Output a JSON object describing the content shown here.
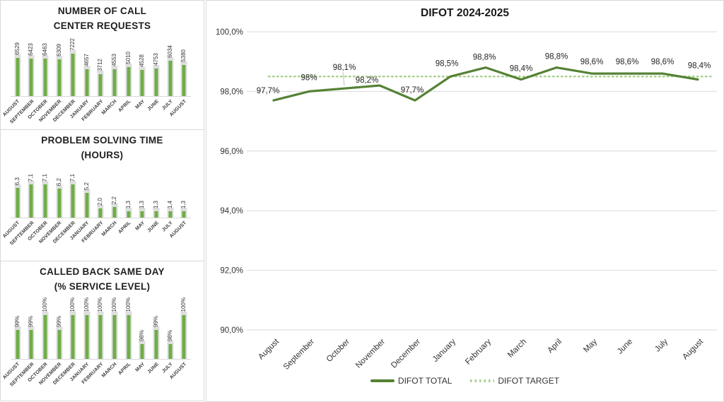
{
  "colors": {
    "bar_green": "#70AD47",
    "bar_shadow_gray": "#DEDEDE",
    "line_green": "#548235",
    "target_green": "#A9D18E",
    "gridline_gray": "#D9D9D9",
    "text_dark": "#262626",
    "text_muted": "#404040"
  },
  "chart_data": [
    {
      "id": "call-center-requests",
      "type": "bar",
      "title": "NUMBER OF CALL CENTER REQUESTS",
      "title_lines": [
        "NUMBER OF CALL",
        "CENTER REQUESTS"
      ],
      "categories": [
        "AUGUST",
        "SEPTEMBER",
        "OCTOBER",
        "NOVEMBER",
        "DECEMBER",
        "JANUARY",
        "FEBRUARY",
        "MARCH",
        "APRIL",
        "MAY",
        "JUNE",
        "JULY",
        "AUGUST"
      ],
      "values": [
        6529,
        6423,
        6463,
        6309,
        7222,
        4657,
        3712,
        4553,
        5010,
        4528,
        4753,
        6034,
        5380
      ],
      "labels": [
        "6529",
        "6423",
        "6463",
        "6309",
        "7222",
        "4657",
        "3712",
        "4553",
        "5010",
        "4528",
        "4753",
        "6034",
        "5380"
      ],
      "ylim": [
        0,
        7500
      ],
      "grid": false,
      "legend_position": "none"
    },
    {
      "id": "problem-solving-time",
      "type": "bar",
      "title": "PROBLEM SOLVING TIME (HOURS)",
      "title_lines": [
        "PROBLEM SOLVING TIME",
        "(HOURS)"
      ],
      "categories": [
        "AUGUST",
        "SEPTEMBER",
        "OCTOBER",
        "NOVEMBER",
        "DECEMBER",
        "JANUARY",
        "FEBRUARY",
        "MARCH",
        "APRIL",
        "MAY",
        "JUNE",
        "JULY",
        "AUGUST"
      ],
      "values": [
        6.3,
        7.1,
        7.1,
        6.2,
        7.1,
        5.2,
        2.0,
        2.2,
        1.3,
        1.3,
        1.3,
        1.4,
        1.3
      ],
      "labels": [
        "6,3",
        "7,1",
        "7,1",
        "6,2",
        "7,1",
        "5,2",
        "2,0",
        "2,2",
        "1,3",
        "1,3",
        "1,3",
        "1,4",
        "1,3"
      ],
      "ylim": [
        0,
        7.5
      ],
      "grid": false,
      "legend_position": "none"
    },
    {
      "id": "called-back-same-day",
      "type": "bar",
      "title": "CALLED BACK SAME DAY (% SERVICE LEVEL)",
      "title_lines": [
        "CALLED BACK SAME DAY",
        "(% SERVICE LEVEL)"
      ],
      "categories": [
        "AUGUST",
        "SEPTEMBER",
        "OCTOBER",
        "NOVEMBER",
        "DECEMBER",
        "JANUARY",
        "FEBRUARY",
        "MARCH",
        "APRIL",
        "MAY",
        "JUNE",
        "JULY",
        "AUGUST"
      ],
      "values": [
        99,
        99,
        100,
        99,
        100,
        100,
        100,
        100,
        100,
        98,
        99,
        98,
        100
      ],
      "labels": [
        "99%",
        "99%",
        "100%",
        "99%",
        "100%",
        "100%",
        "100%",
        "100%",
        "100%",
        "98%",
        "99%",
        "98%",
        "100%"
      ],
      "ylim": [
        97,
        100
      ],
      "grid": false,
      "legend_position": "none"
    },
    {
      "id": "difot-2024-2025",
      "type": "line",
      "title": "DIFOT 2024-2025",
      "categories": [
        "August",
        "September",
        "October",
        "November",
        "December",
        "January",
        "February",
        "March",
        "April",
        "May",
        "June",
        "July",
        "August"
      ],
      "series": [
        {
          "name": "DIFOT TOTAL",
          "style": "solid",
          "color": "#548235",
          "values": [
            97.7,
            98.0,
            98.1,
            98.2,
            97.7,
            98.5,
            98.8,
            98.4,
            98.8,
            98.6,
            98.6,
            98.6,
            98.4
          ],
          "labels": [
            "97,7%",
            "98%",
            "98,1%",
            "98,2%",
            "97,7%",
            "98,5%",
            "98,8%",
            "98,4%",
            "98,8%",
            "98,6%",
            "98,6%",
            "98,6%",
            "98,4%"
          ]
        },
        {
          "name": "DIFOT TARGET",
          "style": "dotted",
          "color": "#A9D18E",
          "constant_value": 98.5
        }
      ],
      "ylim": [
        90,
        100
      ],
      "yticks": [
        {
          "value": 100,
          "label": "100,0%"
        },
        {
          "value": 98,
          "label": "98,0%"
        },
        {
          "value": 96,
          "label": "96,0%"
        },
        {
          "value": 94,
          "label": "94,0%"
        },
        {
          "value": 92,
          "label": "92,0%"
        },
        {
          "value": 90,
          "label": "90,0%"
        }
      ],
      "grid": true,
      "legend_position": "bottom"
    }
  ]
}
